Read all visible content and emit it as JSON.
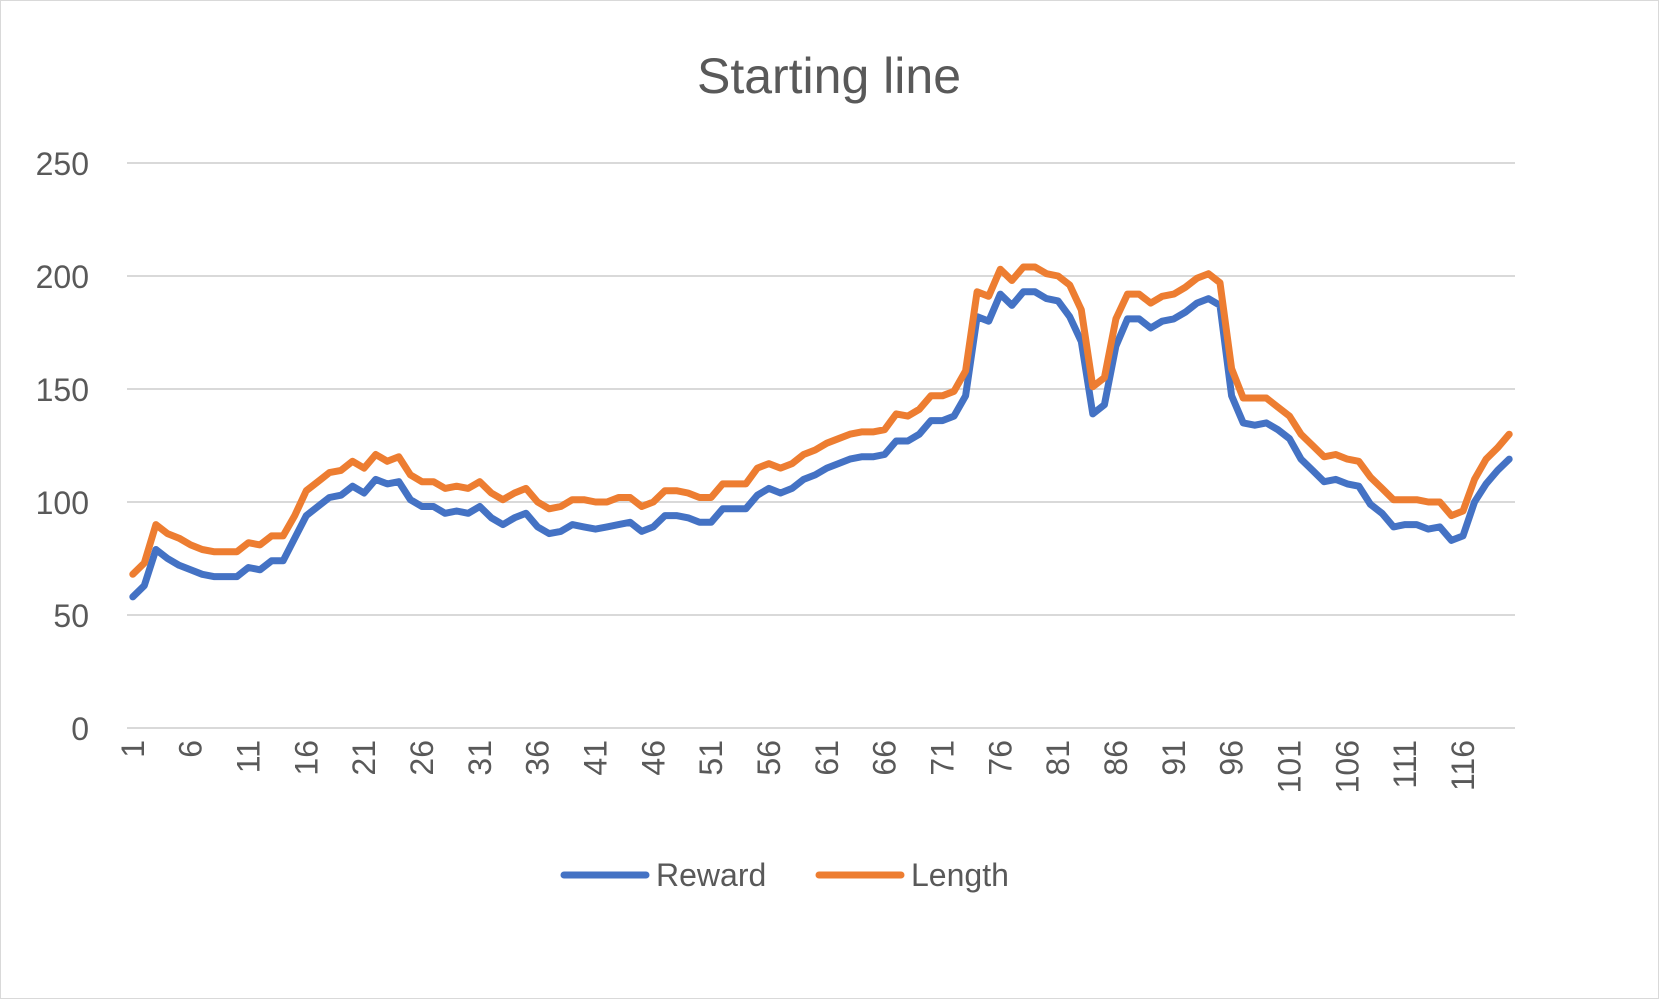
{
  "chart_data": {
    "type": "line",
    "title": "Starting line",
    "xlabel": "",
    "ylabel": "",
    "ylim": [
      0,
      250
    ],
    "yticks": [
      0,
      50,
      100,
      150,
      200,
      250
    ],
    "xtick_labels": [
      "1",
      "6",
      "11",
      "16",
      "21",
      "26",
      "31",
      "36",
      "41",
      "46",
      "51",
      "56",
      "61",
      "66",
      "71",
      "76",
      "81",
      "86",
      "91",
      "96",
      "101",
      "106",
      "111",
      "116"
    ],
    "x": [
      1,
      2,
      3,
      4,
      5,
      6,
      7,
      8,
      9,
      10,
      11,
      12,
      13,
      14,
      15,
      16,
      17,
      18,
      19,
      20,
      21,
      22,
      23,
      24,
      25,
      26,
      27,
      28,
      29,
      30,
      31,
      32,
      33,
      34,
      35,
      36,
      37,
      38,
      39,
      40,
      41,
      42,
      43,
      44,
      45,
      46,
      47,
      48,
      49,
      50,
      51,
      52,
      53,
      54,
      55,
      56,
      57,
      58,
      59,
      60,
      61,
      62,
      63,
      64,
      65,
      66,
      67,
      68,
      69,
      70,
      71,
      72,
      73,
      74,
      75,
      76,
      77,
      78,
      79,
      80,
      81,
      82,
      83,
      84,
      85,
      86,
      87,
      88,
      89,
      90,
      91,
      92,
      93,
      94,
      95,
      96,
      97,
      98,
      99,
      100,
      101,
      102,
      103,
      104,
      105,
      106,
      107,
      108,
      109,
      110,
      111,
      112,
      113,
      114,
      115,
      116,
      117,
      118,
      119,
      120
    ],
    "series": [
      {
        "name": "Reward",
        "color": "#4472C4",
        "values": [
          58,
          63,
          79,
          75,
          72,
          70,
          68,
          67,
          67,
          67,
          71,
          70,
          74,
          74,
          84,
          94,
          98,
          102,
          103,
          107,
          104,
          110,
          108,
          109,
          101,
          98,
          98,
          95,
          96,
          95,
          98,
          93,
          90,
          93,
          95,
          89,
          86,
          87,
          90,
          89,
          88,
          89,
          90,
          91,
          87,
          89,
          94,
          94,
          93,
          91,
          91,
          97,
          97,
          97,
          103,
          106,
          104,
          106,
          110,
          112,
          115,
          117,
          119,
          120,
          120,
          121,
          127,
          127,
          130,
          136,
          136,
          138,
          147,
          182,
          180,
          192,
          187,
          193,
          193,
          190,
          189,
          182,
          171,
          139,
          143,
          169,
          181,
          181,
          177,
          180,
          181,
          184,
          188,
          190,
          187,
          147,
          135,
          134,
          135,
          132,
          128,
          119,
          114,
          109,
          110,
          108,
          107,
          99,
          95,
          89,
          90,
          90,
          88,
          89,
          83,
          85,
          100,
          108,
          114,
          119
        ]
      },
      {
        "name": "Length",
        "color": "#ED7D31",
        "values": [
          68,
          73,
          90,
          86,
          84,
          81,
          79,
          78,
          78,
          78,
          82,
          81,
          85,
          85,
          94,
          105,
          109,
          113,
          114,
          118,
          115,
          121,
          118,
          120,
          112,
          109,
          109,
          106,
          107,
          106,
          109,
          104,
          101,
          104,
          106,
          100,
          97,
          98,
          101,
          101,
          100,
          100,
          102,
          102,
          98,
          100,
          105,
          105,
          104,
          102,
          102,
          108,
          108,
          108,
          115,
          117,
          115,
          117,
          121,
          123,
          126,
          128,
          130,
          131,
          131,
          132,
          139,
          138,
          141,
          147,
          147,
          149,
          158,
          193,
          191,
          203,
          198,
          204,
          204,
          201,
          200,
          196,
          185,
          151,
          155,
          181,
          192,
          192,
          188,
          191,
          192,
          195,
          199,
          201,
          197,
          159,
          146,
          146,
          146,
          142,
          138,
          130,
          125,
          120,
          121,
          119,
          118,
          111,
          106,
          101,
          101,
          101,
          100,
          100,
          94,
          96,
          110,
          119,
          124,
          130
        ]
      }
    ],
    "grid": "horizontal",
    "legend": "bottom"
  }
}
